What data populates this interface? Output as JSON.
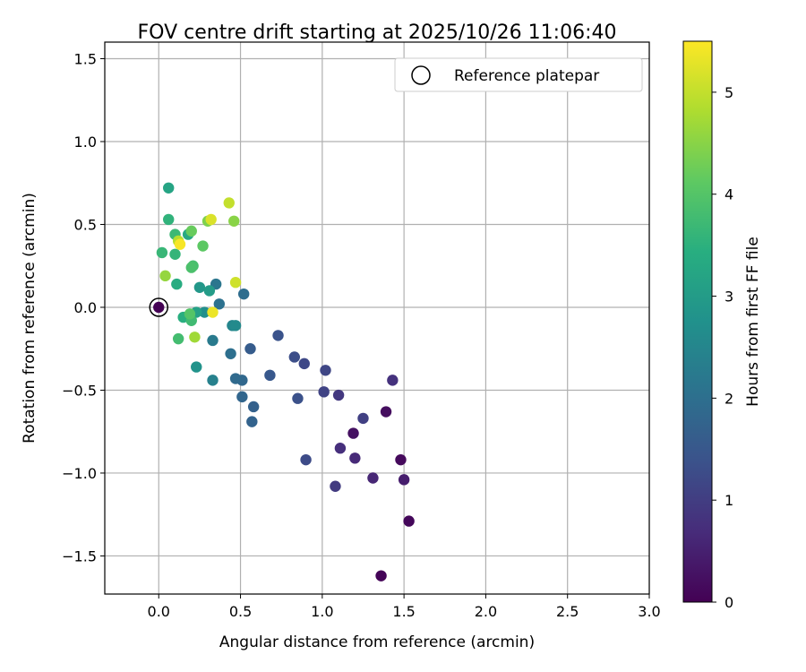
{
  "chart_data": {
    "type": "scatter",
    "title": "FOV centre drift starting at 2025/10/26 11:06:40",
    "xlabel": "Angular distance from reference (arcmin)",
    "ylabel": "Rotation from reference (arcmin)",
    "xlim": [
      -0.33,
      3.0
    ],
    "ylim": [
      -1.73,
      1.6
    ],
    "x_ticks": [
      0.0,
      0.5,
      1.0,
      1.5,
      2.0,
      2.5,
      3.0
    ],
    "x_tick_labels": [
      "0.0",
      "0.5",
      "1.0",
      "1.5",
      "2.0",
      "2.5",
      "3.0"
    ],
    "y_ticks": [
      -1.5,
      -1.0,
      -0.5,
      0.0,
      0.5,
      1.0,
      1.5
    ],
    "y_tick_labels": [
      "−1.5",
      "−1.0",
      "−0.5",
      "0.0",
      "0.5",
      "1.0",
      "1.5"
    ],
    "grid": true,
    "legend": {
      "position": "top-right",
      "entries": [
        "Reference platepar"
      ]
    },
    "colorbar": {
      "label": "Hours from first FF file",
      "range": [
        0,
        5.5
      ],
      "ticks": [
        0,
        1,
        2,
        3,
        4,
        5
      ],
      "tick_labels": [
        "0",
        "1",
        "2",
        "3",
        "4",
        "5"
      ],
      "colormap": "viridis"
    },
    "reference_point": {
      "x": 0.0,
      "y": 0.0,
      "hours": 0.0
    },
    "series": [
      {
        "points": [
          {
            "x": 1.36,
            "y": -1.62,
            "h": 0.05
          },
          {
            "x": 1.53,
            "y": -1.29,
            "h": 0.1
          },
          {
            "x": 1.48,
            "y": -0.92,
            "h": 0.15
          },
          {
            "x": 1.39,
            "y": -0.63,
            "h": 0.2
          },
          {
            "x": 1.19,
            "y": -0.76,
            "h": 0.25
          },
          {
            "x": 1.5,
            "y": -1.04,
            "h": 0.45
          },
          {
            "x": 1.31,
            "y": -1.03,
            "h": 0.6
          },
          {
            "x": 1.2,
            "y": -0.91,
            "h": 0.65
          },
          {
            "x": 1.11,
            "y": -0.85,
            "h": 0.75
          },
          {
            "x": 1.43,
            "y": -0.44,
            "h": 0.8
          },
          {
            "x": 1.1,
            "y": -0.53,
            "h": 0.9
          },
          {
            "x": 1.08,
            "y": -1.08,
            "h": 0.95
          },
          {
            "x": 1.25,
            "y": -0.67,
            "h": 1.05
          },
          {
            "x": 1.01,
            "y": -0.51,
            "h": 1.1
          },
          {
            "x": 1.02,
            "y": -0.38,
            "h": 1.15
          },
          {
            "x": 0.89,
            "y": -0.34,
            "h": 1.2
          },
          {
            "x": 0.9,
            "y": -0.92,
            "h": 1.25
          },
          {
            "x": 0.83,
            "y": -0.3,
            "h": 1.3
          },
          {
            "x": 0.85,
            "y": -0.55,
            "h": 1.35
          },
          {
            "x": 0.73,
            "y": -0.17,
            "h": 1.4
          },
          {
            "x": 0.68,
            "y": -0.41,
            "h": 1.5
          },
          {
            "x": 0.56,
            "y": -0.25,
            "h": 1.6
          },
          {
            "x": 0.58,
            "y": -0.6,
            "h": 1.7
          },
          {
            "x": 0.57,
            "y": -0.69,
            "h": 1.75
          },
          {
            "x": 0.51,
            "y": -0.54,
            "h": 1.8
          },
          {
            "x": 0.51,
            "y": -0.44,
            "h": 1.85
          },
          {
            "x": 0.47,
            "y": -0.43,
            "h": 1.9
          },
          {
            "x": 0.52,
            "y": 0.08,
            "h": 1.95
          },
          {
            "x": 0.44,
            "y": -0.28,
            "h": 2.0
          },
          {
            "x": 0.37,
            "y": 0.02,
            "h": 2.05
          },
          {
            "x": 0.35,
            "y": 0.14,
            "h": 2.15
          },
          {
            "x": 0.33,
            "y": -0.2,
            "h": 2.25
          },
          {
            "x": 0.33,
            "y": -0.44,
            "h": 2.4
          },
          {
            "x": 0.45,
            "y": -0.11,
            "h": 2.5
          },
          {
            "x": 0.47,
            "y": -0.11,
            "h": 2.6
          },
          {
            "x": 0.28,
            "y": -0.03,
            "h": 2.7
          },
          {
            "x": 0.23,
            "y": -0.36,
            "h": 2.8
          },
          {
            "x": 0.25,
            "y": 0.12,
            "h": 2.9
          },
          {
            "x": 0.31,
            "y": 0.1,
            "h": 3.0
          },
          {
            "x": 0.23,
            "y": -0.03,
            "h": 3.1
          },
          {
            "x": 0.06,
            "y": 0.72,
            "h": 3.2
          },
          {
            "x": 0.18,
            "y": 0.44,
            "h": 3.3
          },
          {
            "x": 0.11,
            "y": 0.14,
            "h": 3.4
          },
          {
            "x": 0.15,
            "y": -0.06,
            "h": 3.45
          },
          {
            "x": 0.06,
            "y": 0.53,
            "h": 3.55
          },
          {
            "x": 0.1,
            "y": 0.32,
            "h": 3.6
          },
          {
            "x": 0.02,
            "y": 0.33,
            "h": 3.65
          },
          {
            "x": 0.1,
            "y": 0.44,
            "h": 3.7
          },
          {
            "x": 0.2,
            "y": -0.08,
            "h": 3.75
          },
          {
            "x": 0.12,
            "y": -0.19,
            "h": 3.8
          },
          {
            "x": 0.21,
            "y": 0.25,
            "h": 3.85
          },
          {
            "x": 0.2,
            "y": 0.24,
            "h": 3.9
          },
          {
            "x": 0.19,
            "y": -0.04,
            "h": 4.0
          },
          {
            "x": 0.27,
            "y": 0.37,
            "h": 4.1
          },
          {
            "x": 0.2,
            "y": 0.46,
            "h": 4.2
          },
          {
            "x": 0.3,
            "y": 0.52,
            "h": 4.4
          },
          {
            "x": 0.46,
            "y": 0.52,
            "h": 4.5
          },
          {
            "x": 0.04,
            "y": 0.19,
            "h": 4.6
          },
          {
            "x": 0.22,
            "y": -0.18,
            "h": 4.7
          },
          {
            "x": 0.12,
            "y": 0.4,
            "h": 4.9
          },
          {
            "x": 0.43,
            "y": 0.63,
            "h": 5.0
          },
          {
            "x": 0.47,
            "y": 0.15,
            "h": 5.1
          },
          {
            "x": 0.32,
            "y": 0.53,
            "h": 5.2
          },
          {
            "x": 0.33,
            "y": -0.03,
            "h": 5.35
          },
          {
            "x": 0.13,
            "y": 0.38,
            "h": 5.45
          }
        ]
      }
    ]
  }
}
